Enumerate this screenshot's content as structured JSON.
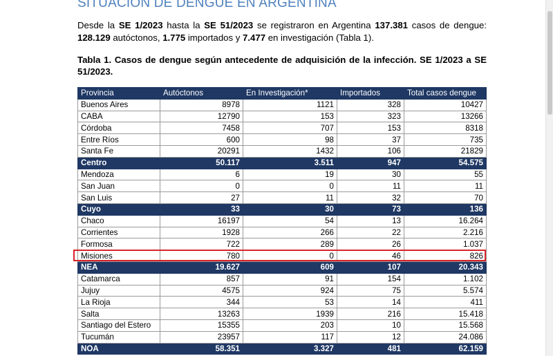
{
  "heading": "SITUACIÓN DE DENGUE EN ARGENTINA",
  "intro": {
    "t1": "Desde la ",
    "b1": "SE 1/2023",
    "t2": " hasta la ",
    "b2": "SE 51/2023",
    "t3": " se registraron en Argentina ",
    "b3": "137.381",
    "t4": " casos de dengue: ",
    "b4": "128.129",
    "t5": " autóctonos, ",
    "b5": "1.775",
    "t6": " importados y ",
    "b6": "7.477",
    "t7": " en investigación (Tabla 1)."
  },
  "caption": "Tabla 1. Casos de dengue según antecedente de adquisición de la infección. SE 1/2023 a SE 51/2023.",
  "table": {
    "headers": [
      "Provincia",
      "Autóctonos",
      "En Investigación*",
      "Importados",
      "Total casos dengue"
    ],
    "rows": [
      {
        "cells": [
          "Buenos Aires",
          "8978",
          "1121",
          "328",
          "10427"
        ],
        "total": false
      },
      {
        "cells": [
          "CABA",
          "12790",
          "153",
          "323",
          "13266"
        ],
        "total": false
      },
      {
        "cells": [
          "Córdoba",
          "7458",
          "707",
          "153",
          "8318"
        ],
        "total": false
      },
      {
        "cells": [
          "Entre Ríos",
          "600",
          "98",
          "37",
          "735"
        ],
        "total": false
      },
      {
        "cells": [
          "Santa Fe",
          "20291",
          "1432",
          "106",
          "21829"
        ],
        "total": false
      },
      {
        "cells": [
          "Centro",
          "50.117",
          "3.511",
          "947",
          "54.575"
        ],
        "total": true
      },
      {
        "cells": [
          "Mendoza",
          "6",
          "19",
          "30",
          "55"
        ],
        "total": false
      },
      {
        "cells": [
          "San Juan",
          "0",
          "0",
          "11",
          "11"
        ],
        "total": false
      },
      {
        "cells": [
          "San Luis",
          "27",
          "11",
          "32",
          "70"
        ],
        "total": false
      },
      {
        "cells": [
          "Cuyo",
          "33",
          "30",
          "73",
          "136"
        ],
        "total": true
      },
      {
        "cells": [
          "Chaco",
          "16197",
          "54",
          "13",
          "16.264"
        ],
        "total": false
      },
      {
        "cells": [
          "Corrientes",
          "1928",
          "266",
          "22",
          "2.216"
        ],
        "total": false
      },
      {
        "cells": [
          "Formosa",
          "722",
          "289",
          "26",
          "1.037"
        ],
        "total": false
      },
      {
        "cells": [
          "Misiones",
          "780",
          "0",
          "46",
          "826"
        ],
        "total": false
      },
      {
        "cells": [
          "NEA",
          "19.627",
          "609",
          "107",
          "20.343"
        ],
        "total": true
      },
      {
        "cells": [
          "Catamarca",
          "857",
          "91",
          "154",
          "1.102"
        ],
        "total": false
      },
      {
        "cells": [
          "Jujuy",
          "4575",
          "924",
          "75",
          "5.574"
        ],
        "total": false
      },
      {
        "cells": [
          "La Rioja",
          "344",
          "53",
          "14",
          "411"
        ],
        "total": false
      },
      {
        "cells": [
          "Salta",
          "13263",
          "1939",
          "216",
          "15.418"
        ],
        "total": false
      },
      {
        "cells": [
          "Santiago del Estero",
          "15355",
          "203",
          "10",
          "15.568"
        ],
        "total": false
      },
      {
        "cells": [
          "Tucumán",
          "23957",
          "117",
          "12",
          "24.086"
        ],
        "total": false
      },
      {
        "cells": [
          "NOA",
          "58.351",
          "3.327",
          "481",
          "62.159"
        ],
        "total": true
      }
    ]
  },
  "highlight_color": "#d9232a",
  "header_color": "#1f3864",
  "heading_color": "#4f81bd"
}
